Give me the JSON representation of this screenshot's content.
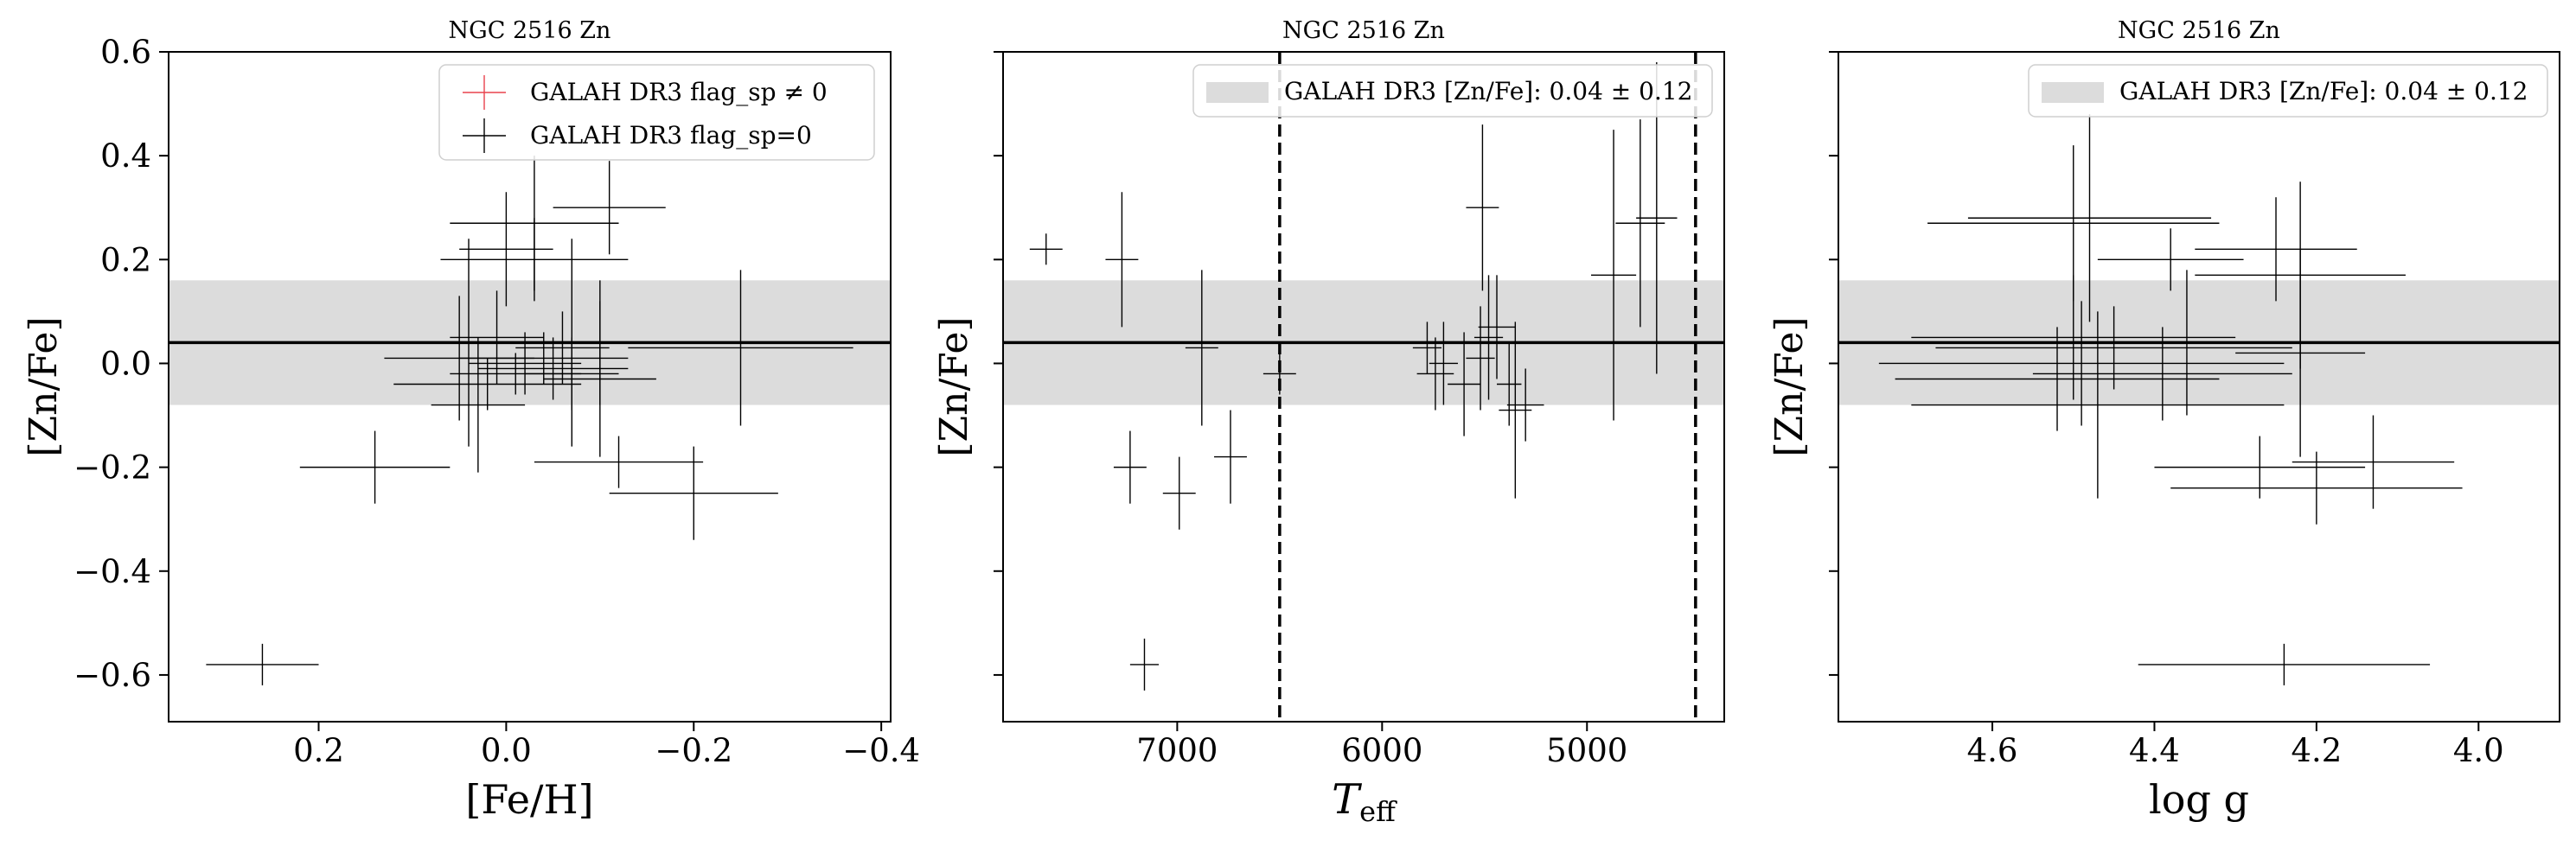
{
  "figure": {
    "colors": {
      "flagged": "#e8424d",
      "unflagged": "#000000",
      "band": "#dcdcdc"
    }
  },
  "chart_data": [
    {
      "type": "scatter",
      "title": "NGC 2516 Zn",
      "xlabel": "[Fe/H]",
      "ylabel": "[Zn/Fe]",
      "xlim": [
        0.36,
        -0.41
      ],
      "ylim": [
        -0.69,
        0.6
      ],
      "x_inverted": true,
      "xticks": [
        0.2,
        0.0,
        -0.2,
        -0.4
      ],
      "xtick_labels": [
        "0.2",
        "0.0",
        "−0.2",
        "−0.4"
      ],
      "yticks": [
        -0.6,
        -0.4,
        -0.2,
        0.0,
        0.2,
        0.4,
        0.6
      ],
      "ytick_labels": [
        "−0.6",
        "−0.4",
        "−0.2",
        "0.0",
        "0.2",
        "0.4",
        "0.6"
      ],
      "band": {
        "center": 0.04,
        "half_width": 0.12
      },
      "legend": {
        "location": "upper right",
        "entries": [
          {
            "label": "GALAH DR3 flag_sp ≠ 0",
            "color": "#e8424d"
          },
          {
            "label": "GALAH DR3 flag_sp=0",
            "color": "#000000"
          }
        ]
      },
      "series": [
        {
          "name": "GALAH DR3 flag_sp ≠ 0",
          "points": []
        },
        {
          "name": "GALAH DR3 flag_sp=0",
          "points": [
            {
              "x": 0.26,
              "y": -0.58,
              "xerr": 0.06,
              "yerr": 0.04
            },
            {
              "x": 0.14,
              "y": -0.2,
              "xerr": 0.08,
              "yerr": 0.07
            },
            {
              "x": 0.05,
              "y": 0.01,
              "xerr": 0.08,
              "yerr": 0.12
            },
            {
              "x": 0.0,
              "y": 0.22,
              "xerr": 0.05,
              "yerr": 0.11
            },
            {
              "x": 0.01,
              "y": 0.05,
              "xerr": 0.05,
              "yerr": 0.09
            },
            {
              "x": 0.04,
              "y": 0.04,
              "xerr": 0.06,
              "yerr": 0.2
            },
            {
              "x": 0.03,
              "y": -0.08,
              "xerr": 0.05,
              "yerr": 0.13
            },
            {
              "x": 0.02,
              "y": -0.04,
              "xerr": 0.1,
              "yerr": 0.05
            },
            {
              "x": -0.02,
              "y": 0.0,
              "xerr": 0.06,
              "yerr": 0.06
            },
            {
              "x": -0.04,
              "y": 0.01,
              "xerr": 0.09,
              "yerr": 0.05
            },
            {
              "x": -0.05,
              "y": -0.01,
              "xerr": 0.08,
              "yerr": 0.06
            },
            {
              "x": -0.03,
              "y": 0.2,
              "xerr": 0.1,
              "yerr": 0.08
            },
            {
              "x": -0.06,
              "y": 0.03,
              "xerr": 0.05,
              "yerr": 0.07
            },
            {
              "x": -0.07,
              "y": -0.02,
              "xerr": 0.05,
              "yerr": 0.07
            },
            {
              "x": -0.07,
              "y": 0.04,
              "xerr": 0.07,
              "yerr": 0.2
            },
            {
              "x": -0.03,
              "y": 0.27,
              "xerr": 0.09,
              "yerr": 0.13
            },
            {
              "x": -0.11,
              "y": 0.3,
              "xerr": 0.06,
              "yerr": 0.09
            },
            {
              "x": -0.1,
              "y": -0.03,
              "xerr": 0.06,
              "yerr": 0.15
            },
            {
              "x": -0.1,
              "y": 0.04,
              "xerr": 0.05,
              "yerr": 0.12
            },
            {
              "x": -0.12,
              "y": -0.19,
              "xerr": 0.09,
              "yerr": 0.05
            },
            {
              "x": -0.2,
              "y": -0.25,
              "xerr": 0.09,
              "yerr": 0.09
            },
            {
              "x": -0.25,
              "y": 0.03,
              "xerr": 0.12,
              "yerr": 0.15
            },
            {
              "x": -0.01,
              "y": -0.02,
              "xerr": 0.07,
              "yerr": 0.04
            }
          ]
        }
      ]
    },
    {
      "type": "scatter",
      "title": "NGC 2516 Zn",
      "xlabel": "T_eff",
      "ylabel": "[Zn/Fe]",
      "xlim": [
        7850,
        4330
      ],
      "ylim": [
        -0.69,
        0.6
      ],
      "x_inverted": true,
      "xticks": [
        7000,
        6000,
        5000
      ],
      "xtick_labels": [
        "7000",
        "6000",
        "5000"
      ],
      "yticks": [
        -0.6,
        -0.4,
        -0.2,
        0.0,
        0.2,
        0.4,
        0.6
      ],
      "vlines": [
        6500,
        4470
      ],
      "band": {
        "center": 0.04,
        "half_width": 0.12
      },
      "legend": {
        "location": "upper right",
        "entries": [
          {
            "label": "GALAH DR3 [Zn/Fe]: 0.04 ± 0.12",
            "color": "#dcdcdc"
          }
        ]
      },
      "series": [
        {
          "name": "GALAH DR3 flag_sp=0",
          "points": [
            {
              "x": 7640,
              "y": 0.22,
              "xerr": 80,
              "yerr": 0.03
            },
            {
              "x": 7270,
              "y": 0.2,
              "xerr": 80,
              "yerr": 0.13
            },
            {
              "x": 7230,
              "y": -0.2,
              "xerr": 80,
              "yerr": 0.07
            },
            {
              "x": 7160,
              "y": -0.58,
              "xerr": 70,
              "yerr": 0.05
            },
            {
              "x": 6990,
              "y": -0.25,
              "xerr": 80,
              "yerr": 0.07
            },
            {
              "x": 6880,
              "y": 0.03,
              "xerr": 80,
              "yerr": 0.15
            },
            {
              "x": 6740,
              "y": -0.18,
              "xerr": 80,
              "yerr": 0.09
            },
            {
              "x": 6500,
              "y": -0.02,
              "xerr": 80,
              "yerr": 0.04
            },
            {
              "x": 5780,
              "y": 0.03,
              "xerr": 70,
              "yerr": 0.05
            },
            {
              "x": 5740,
              "y": -0.02,
              "xerr": 90,
              "yerr": 0.07
            },
            {
              "x": 5700,
              "y": 0.0,
              "xerr": 70,
              "yerr": 0.08
            },
            {
              "x": 5600,
              "y": -0.04,
              "xerr": 80,
              "yerr": 0.1
            },
            {
              "x": 5520,
              "y": 0.01,
              "xerr": 70,
              "yerr": 0.1
            },
            {
              "x": 5510,
              "y": 0.3,
              "xerr": 80,
              "yerr": 0.16
            },
            {
              "x": 5480,
              "y": 0.05,
              "xerr": 70,
              "yerr": 0.12
            },
            {
              "x": 5440,
              "y": 0.07,
              "xerr": 90,
              "yerr": 0.1
            },
            {
              "x": 5380,
              "y": -0.04,
              "xerr": 60,
              "yerr": 0.08
            },
            {
              "x": 5350,
              "y": -0.09,
              "xerr": 80,
              "yerr": 0.17
            },
            {
              "x": 5300,
              "y": -0.08,
              "xerr": 90,
              "yerr": 0.07
            },
            {
              "x": 4870,
              "y": 0.17,
              "xerr": 110,
              "yerr": 0.28
            },
            {
              "x": 4740,
              "y": 0.27,
              "xerr": 120,
              "yerr": 0.2
            },
            {
              "x": 4660,
              "y": 0.28,
              "xerr": 100,
              "yerr": 0.3
            }
          ]
        }
      ]
    },
    {
      "type": "scatter",
      "title": "NGC 2516 Zn",
      "xlabel": "log g",
      "ylabel": "[Zn/Fe]",
      "xlim": [
        4.79,
        3.9
      ],
      "ylim": [
        -0.69,
        0.6
      ],
      "x_inverted": true,
      "xticks": [
        4.6,
        4.4,
        4.2,
        4.0
      ],
      "xtick_labels": [
        "4.6",
        "4.4",
        "4.2",
        "4.0"
      ],
      "yticks": [
        -0.6,
        -0.4,
        -0.2,
        0.0,
        0.2,
        0.4,
        0.6
      ],
      "band": {
        "center": 0.04,
        "half_width": 0.12
      },
      "legend": {
        "location": "upper right",
        "entries": [
          {
            "label": "GALAH DR3 [Zn/Fe]: 0.04 ± 0.12",
            "color": "#dcdcdc"
          }
        ]
      },
      "series": [
        {
          "name": "GALAH DR3 flag_sp=0",
          "points": [
            {
              "x": 4.24,
              "y": -0.58,
              "xerr": 0.18,
              "yerr": 0.04
            },
            {
              "x": 4.5,
              "y": 0.27,
              "xerr": 0.18,
              "yerr": 0.15
            },
            {
              "x": 4.48,
              "y": 0.28,
              "xerr": 0.15,
              "yerr": 0.2
            },
            {
              "x": 4.38,
              "y": 0.2,
              "xerr": 0.09,
              "yerr": 0.06
            },
            {
              "x": 4.25,
              "y": 0.22,
              "xerr": 0.1,
              "yerr": 0.1
            },
            {
              "x": 4.22,
              "y": 0.17,
              "xerr": 0.13,
              "yerr": 0.18
            },
            {
              "x": 4.5,
              "y": 0.05,
              "xerr": 0.2,
              "yerr": 0.12
            },
            {
              "x": 4.45,
              "y": 0.03,
              "xerr": 0.22,
              "yerr": 0.08
            },
            {
              "x": 4.52,
              "y": -0.03,
              "xerr": 0.2,
              "yerr": 0.1
            },
            {
              "x": 4.49,
              "y": 0.0,
              "xerr": 0.25,
              "yerr": 0.12
            },
            {
              "x": 4.47,
              "y": -0.08,
              "xerr": 0.23,
              "yerr": 0.18
            },
            {
              "x": 4.39,
              "y": -0.02,
              "xerr": 0.16,
              "yerr": 0.09
            },
            {
              "x": 4.36,
              "y": 0.04,
              "xerr": 0.12,
              "yerr": 0.14
            },
            {
              "x": 4.27,
              "y": -0.2,
              "xerr": 0.13,
              "yerr": 0.06
            },
            {
              "x": 4.2,
              "y": -0.24,
              "xerr": 0.18,
              "yerr": 0.07
            },
            {
              "x": 4.13,
              "y": -0.19,
              "xerr": 0.1,
              "yerr": 0.09
            },
            {
              "x": 4.22,
              "y": 0.02,
              "xerr": 0.08,
              "yerr": 0.2
            }
          ]
        }
      ]
    }
  ]
}
